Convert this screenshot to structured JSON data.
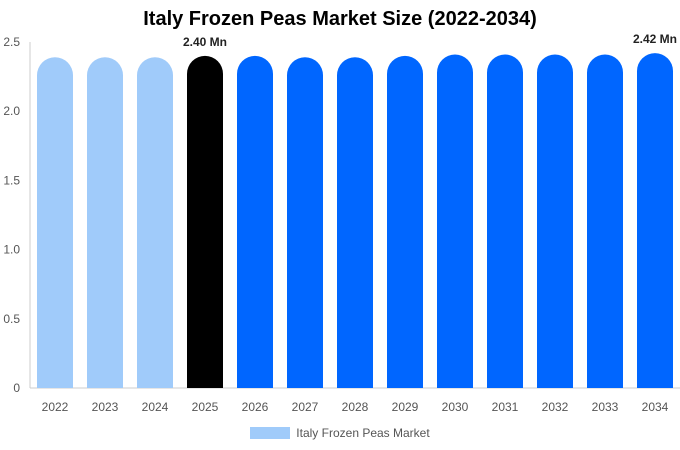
{
  "title": "Italy Frozen Peas Market Size (2022-2034)",
  "chart_data": {
    "type": "bar",
    "title": "Italy Frozen Peas Market Size (2022-2034)",
    "categories": [
      "2022",
      "2023",
      "2024",
      "2025",
      "2026",
      "2027",
      "2028",
      "2029",
      "2030",
      "2031",
      "2032",
      "2033",
      "2034"
    ],
    "series": [
      {
        "name": "Italy Frozen Peas Market",
        "values": [
          2.39,
          2.39,
          2.39,
          2.4,
          2.4,
          2.39,
          2.39,
          2.4,
          2.41,
          2.41,
          2.41,
          2.41,
          2.42
        ]
      }
    ],
    "ylim": [
      0,
      2.5
    ],
    "yticks": [
      "0",
      "0.5",
      "1.0",
      "1.5",
      "2.0",
      "2.5"
    ],
    "ytick_values": [
      0,
      0.5,
      1.0,
      1.5,
      2.0,
      2.5
    ],
    "data_labels": [
      {
        "category": "2025",
        "text": "2.40 Mn"
      },
      {
        "category": "2034",
        "text": "2.42 Mn"
      }
    ],
    "bar_colors": {
      "historical": "#a0cbfa",
      "current": "#000000",
      "forecast": "#0066ff"
    },
    "bar_color_by_category": [
      "historical",
      "historical",
      "historical",
      "current",
      "forecast",
      "forecast",
      "forecast",
      "forecast",
      "forecast",
      "forecast",
      "forecast",
      "forecast",
      "forecast"
    ],
    "legend": {
      "position": "bottom",
      "label": "Italy Frozen Peas Market"
    },
    "grid": false
  }
}
